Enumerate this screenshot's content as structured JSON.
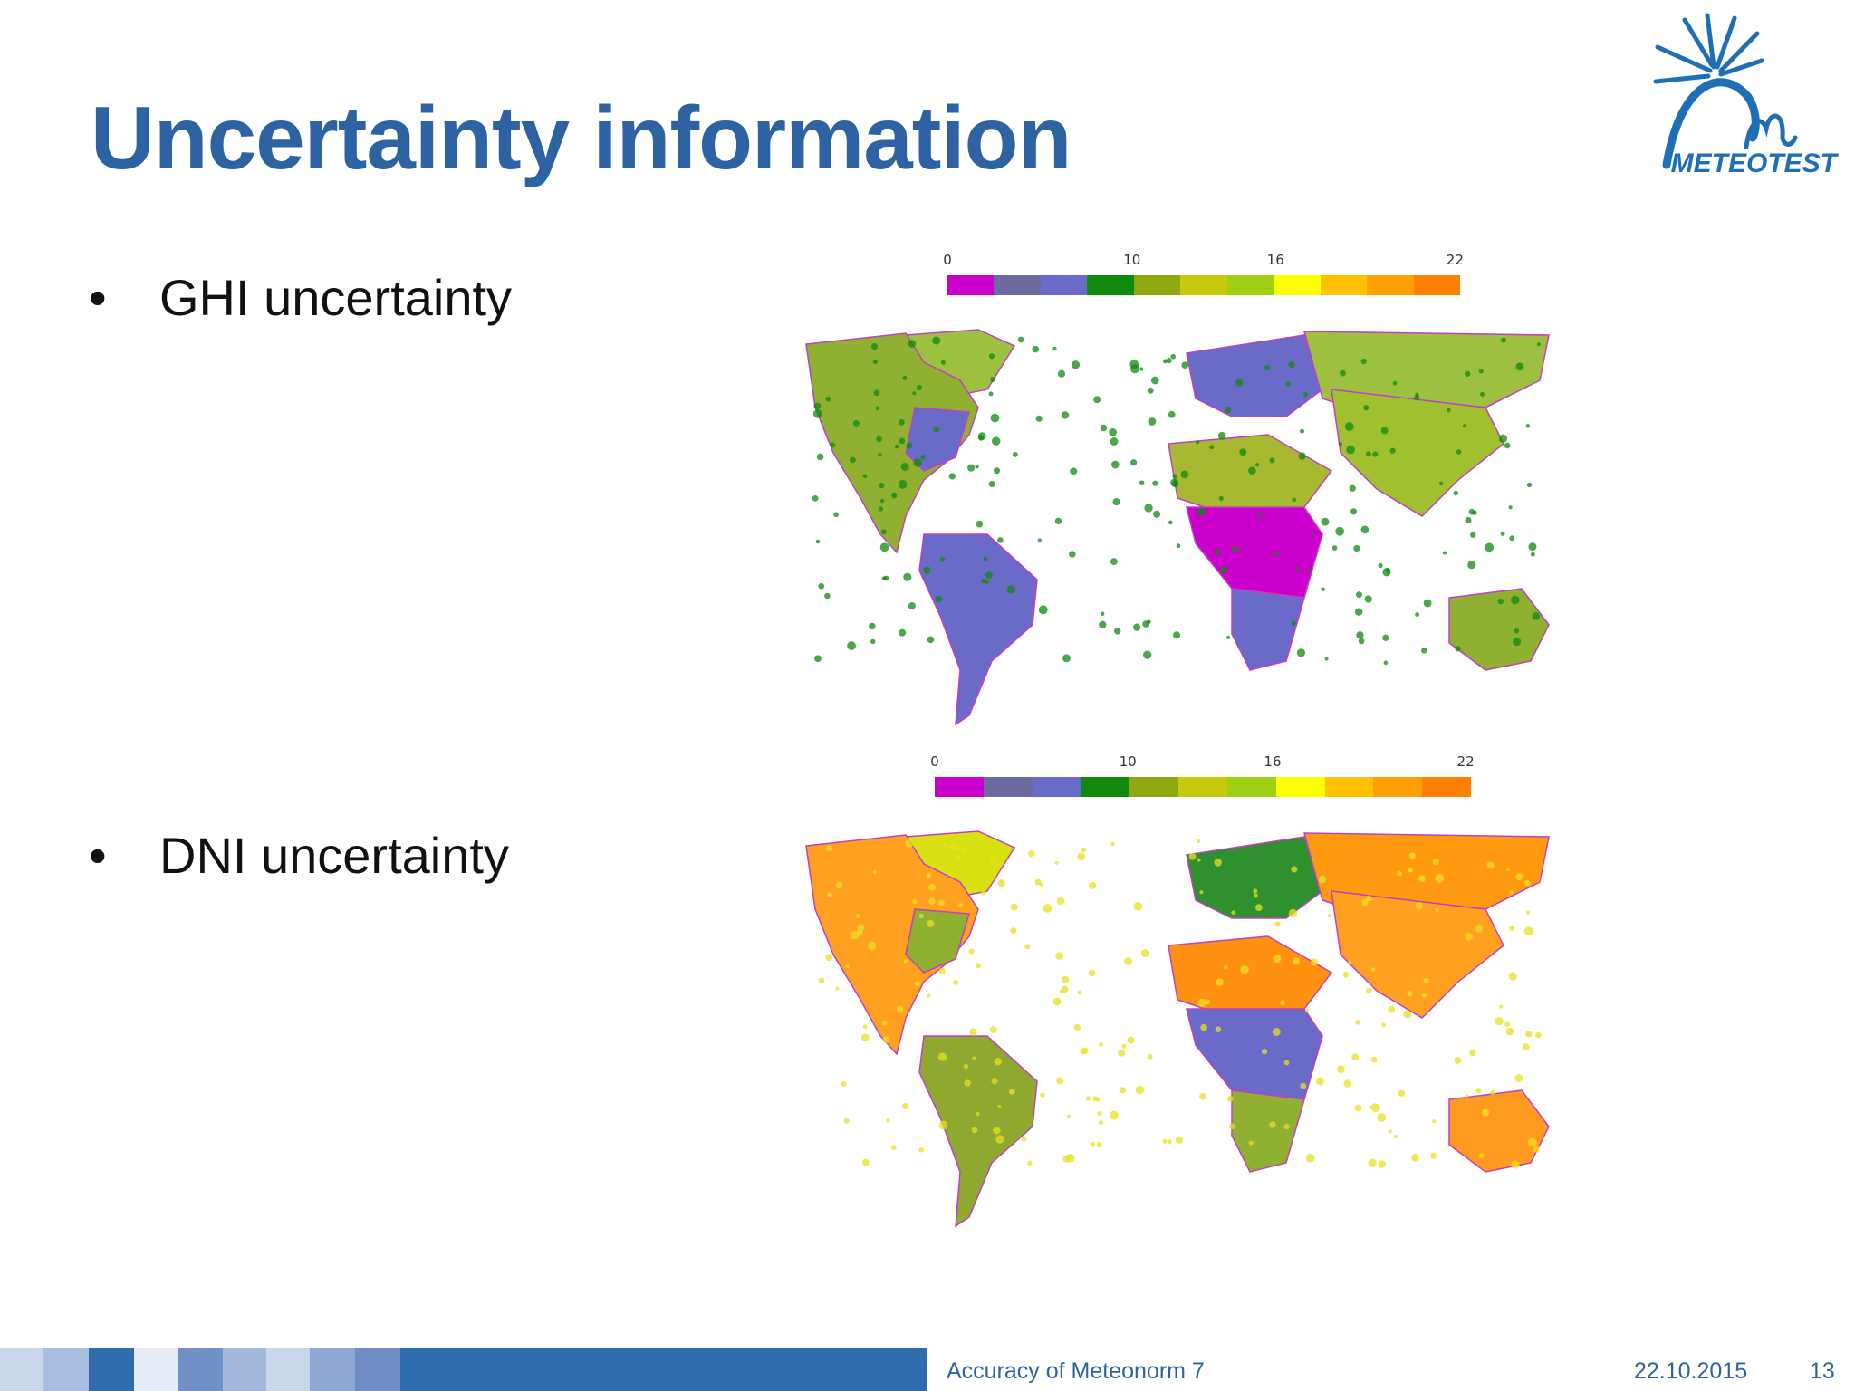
{
  "slide": {
    "title": "Uncertainty information",
    "logo_text": "METEOTEST",
    "bullets": [
      {
        "bullet": "•",
        "label": "GHI uncertainty"
      },
      {
        "bullet": "•",
        "label": "DNI uncertainty"
      }
    ]
  },
  "maps": [
    {
      "id": "ghi",
      "scale_ticks": [
        "0",
        "10",
        "16",
        "22"
      ],
      "palette": [
        "#cc00cc",
        "#6b6b9e",
        "#6a6ac8",
        "#0f8a0f",
        "#8fa810",
        "#c8c80c",
        "#9ecf10",
        "#ffff00",
        "#ffc000",
        "#ffa000",
        "#ff8000"
      ],
      "region_colors": {
        "north_america": "#8fb030",
        "greenland": "#9ec040",
        "eastern_na": "#6a6ac8",
        "south_america": "#6a6ac8",
        "europe": "#6a6ac8",
        "russia": "#9ec040",
        "africa_north": "#a8b830",
        "africa_central": "#cc00cc",
        "africa_south": "#6a6ac8",
        "asia": "#a0c030",
        "australia": "#8fb030",
        "green_dots": "#0f8a0f"
      }
    },
    {
      "id": "dni",
      "scale_ticks": [
        "0",
        "10",
        "16",
        "22"
      ],
      "palette": [
        "#cc00cc",
        "#6b6b9e",
        "#6a6ac8",
        "#0f8a0f",
        "#8fa810",
        "#c8c80c",
        "#9ecf10",
        "#ffff00",
        "#ffc000",
        "#ffa000",
        "#ff8000"
      ],
      "region_colors": {
        "north_america": "#ffa020",
        "greenland": "#d8e010",
        "eastern_na": "#8fb030",
        "south_america": "#8fa830",
        "europe": "#2f9030",
        "russia": "#ff9a10",
        "africa_north": "#ff9010",
        "africa_central": "#6a6ac8",
        "africa_south": "#8fb030",
        "asia": "#ffa020",
        "australia": "#ff9a20",
        "green_dots": "#e8e020"
      }
    }
  ],
  "footer": {
    "caption": "Accuracy of Meteonorm 7",
    "date": "22.10.2015",
    "page": "13",
    "strip_colors": [
      "#c9d6ea",
      "#a9bde0",
      "#2e6cae",
      "#e6ecf6",
      "#6f91c8",
      "#a4b8dc",
      "#c9d6ea",
      "#8fa7d3",
      "#6f8cc4",
      "#2e6cae"
    ]
  }
}
